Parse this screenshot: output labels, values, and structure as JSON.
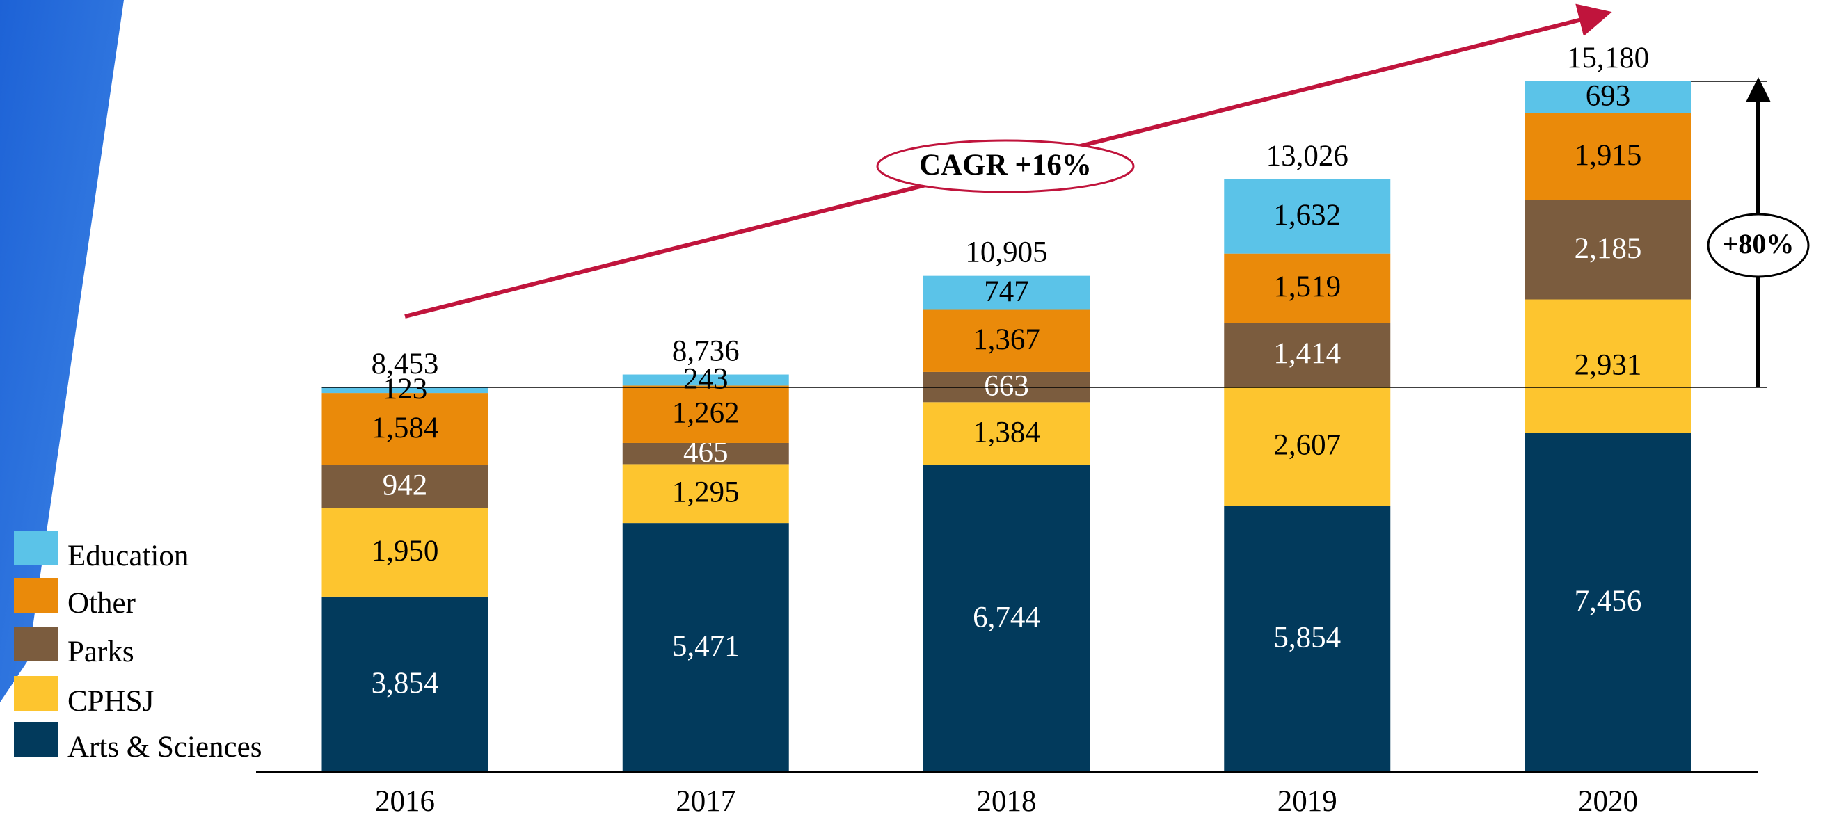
{
  "chart_data": {
    "type": "stacked-bar",
    "categories": [
      "2016",
      "2017",
      "2018",
      "2019",
      "2020"
    ],
    "series": [
      {
        "name": "Arts & Sciences",
        "color": "#023a5c",
        "label_color": "#ffffff",
        "values": [
          3854,
          5471,
          6744,
          5854,
          7456
        ],
        "value_labels": [
          "3,854",
          "5,471",
          "6,744",
          "5,854",
          "7,456"
        ]
      },
      {
        "name": "CPHSJ",
        "color": "#fdc52f",
        "label_color": "#000000",
        "values": [
          1950,
          1295,
          1384,
          2607,
          2931
        ],
        "value_labels": [
          "1,950",
          "1,295",
          "1,384",
          "2,607",
          "2,931"
        ]
      },
      {
        "name": "Parks",
        "color": "#7b5c3e",
        "label_color": "#ffffff",
        "values": [
          942,
          465,
          663,
          1414,
          2185
        ],
        "value_labels": [
          "942",
          "465",
          "663",
          "1,414",
          "2,185"
        ]
      },
      {
        "name": "Other",
        "color": "#ea8a0a",
        "label_color": "#000000",
        "values": [
          1584,
          1262,
          1367,
          1519,
          1915
        ],
        "value_labels": [
          "1,584",
          "1,262",
          "1,367",
          "1,519",
          "1,915"
        ]
      },
      {
        "name": "Education",
        "color": "#5bc3e8",
        "label_color": "#000000",
        "values": [
          123,
          243,
          747,
          1632,
          693
        ],
        "value_labels": [
          "123",
          "243",
          "747",
          "1,632",
          "693"
        ]
      }
    ],
    "totals": [
      8453,
      8736,
      10905,
      13026,
      15180
    ],
    "total_labels": [
      "8,453",
      "8,736",
      "10,905",
      "13,026",
      "15,180"
    ],
    "annotations": {
      "cagr": "CAGR +16%",
      "growth": "+80%"
    }
  }
}
